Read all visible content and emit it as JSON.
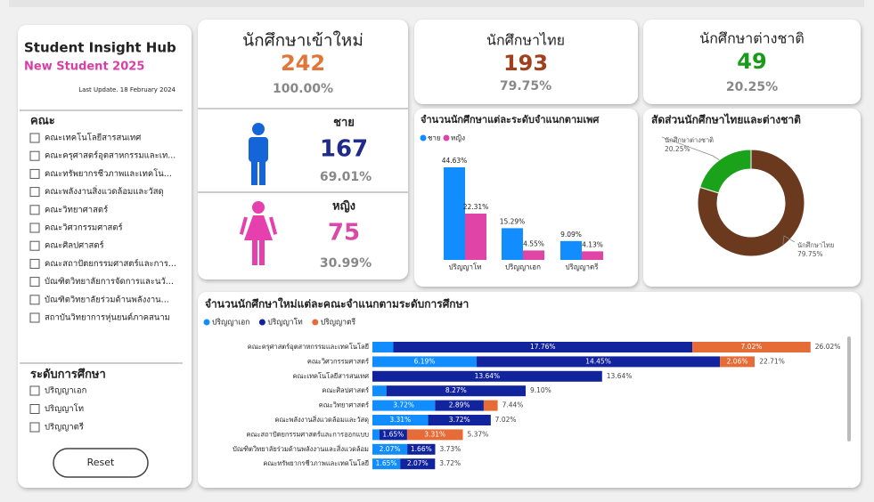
{
  "sidebar": {
    "title": "Student Insight Hub",
    "subtitle": "New Student 2025",
    "last_update": "Last Update. 18 February 2024",
    "faculty_heading": "คณะ",
    "faculties": [
      "คณะเทคโนโลยีสารสนเทศ",
      "คณะครุศาสตร์อุตสาหกรรมและเท...",
      "คณะทรัพยากรชีวภาพและเทคโน...",
      "คณะพลังงานสิ่งแวดล้อมและวัสดุ",
      "คณะวิทยาศาสตร์",
      "คณะวิศวกรรมศาสตร์",
      "คณะศิลปศาสตร์",
      "คณะสถาปัตยกรรมศาสตร์และการ...",
      "บัณฑิตวิทยาลัยการจัดการและนวั...",
      "บัณฑิตวิทยาลัยร่วมด้านพลังงาน...",
      "สถาบันวิทยาการหุ่นยนต์ภาคสนาม"
    ],
    "level_heading": "ระดับการศึกษา",
    "levels": [
      "ปริญญาเอก",
      "ปริญญาโท",
      "ปริญญาตรี"
    ],
    "reset": "Reset"
  },
  "cards": {
    "new": {
      "title": "นักศึกษาเข้าใหม่",
      "value": 242,
      "percent": "100.00%"
    },
    "male": {
      "label": "ชาย",
      "value": 167,
      "percent": "69.01%"
    },
    "female": {
      "label": "หญิง",
      "value": 75,
      "percent": "30.99%"
    },
    "thai": {
      "title": "นักศึกษาไทย",
      "value": 193,
      "percent": "79.75%"
    },
    "foreign": {
      "title": "นักศึกษาต่างชาติ",
      "value": 49,
      "percent": "20.25%"
    }
  },
  "chart_data": [
    {
      "type": "bar",
      "title": "จำนวนนักศึกษาแต่ละระดับจำแนกตามเพศ",
      "categories": [
        "ปริญญาโท",
        "ปริญญาเอก",
        "ปริญญาตรี"
      ],
      "series": [
        {
          "name": "ชาย",
          "color": "#118dff",
          "values": [
            44.63,
            15.29,
            9.09
          ],
          "value_labels": [
            "44.63%",
            "15.29%",
            "9.09%"
          ]
        },
        {
          "name": "หญิง",
          "color": "#e044a7",
          "values": [
            22.31,
            4.55,
            4.13
          ],
          "value_labels": [
            "22.31%",
            "4.55%",
            "4.13%"
          ]
        }
      ]
    },
    {
      "type": "pie",
      "title": "สัดส่วนนักศึกษาไทยและต่างชาติ",
      "categories": [
        "นักศึกษาไทย",
        "นักศึกษาต่างชาติ"
      ],
      "values": [
        79.75,
        20.25
      ],
      "value_labels": [
        "79.75%",
        "20.25%"
      ],
      "colors": [
        "#6b3a1e",
        "#1aa31a"
      ]
    },
    {
      "type": "barh-stacked",
      "title": "จำนวนนักศึกษาใหม่แต่ละคณะจำแนกตามระดับการศึกษา",
      "categories": [
        "คณะครุศาสตร์อุตสาหกรรมและเทคโนโลยี",
        "คณะวิศวกรรมศาสตร์",
        "คณะเทคโนโลยีสารสนเทศ",
        "คณะศิลปศาสตร์",
        "คณะวิทยาศาสตร์",
        "คณะพลังงานสิ่งแวดล้อมและวัสดุ",
        "คณะสถาปัตยกรรมศาสตร์และการออกแบบ",
        "บัณฑิตวิทยาลัยร่วมด้านพลังงานและสิ่งแวดล้อม",
        "คณะทรัพยากรชีวภาพและเทคโนโลยี"
      ],
      "series": [
        {
          "name": "ปริญญาเอก",
          "color": "#118dff",
          "values": [
            1.24,
            6.19,
            null,
            0.83,
            3.72,
            3.31,
            0.41,
            2.07,
            1.65
          ],
          "value_labels": [
            null,
            "6.19%",
            null,
            null,
            "3.72%",
            "3.31%",
            null,
            "2.07%",
            "1.65%"
          ]
        },
        {
          "name": "ปริญญาโท",
          "color": "#12239e",
          "values": [
            17.76,
            14.45,
            13.64,
            8.27,
            2.89,
            3.72,
            1.65,
            1.66,
            2.07
          ],
          "value_labels": [
            "17.76%",
            "14.45%",
            "13.64%",
            "8.27%",
            "2.89%",
            "3.72%",
            "1.65%",
            "1.66%",
            "2.07%"
          ]
        },
        {
          "name": "ปริญญาตรี",
          "color": "#e66c37",
          "values": [
            7.02,
            2.06,
            null,
            null,
            0.83,
            null,
            3.31,
            null,
            null
          ],
          "value_labels": [
            "7.02%",
            "2.06%",
            null,
            null,
            null,
            null,
            "3.31%",
            null,
            null
          ]
        }
      ],
      "totals": [
        26.02,
        22.71,
        13.64,
        9.1,
        7.44,
        7.02,
        5.37,
        3.73,
        3.72
      ],
      "total_labels": [
        "26.02%",
        "22.71%",
        "13.64%",
        "9.10%",
        "7.44%",
        "7.02%",
        "5.37%",
        "3.73%",
        "3.72%"
      ]
    }
  ]
}
